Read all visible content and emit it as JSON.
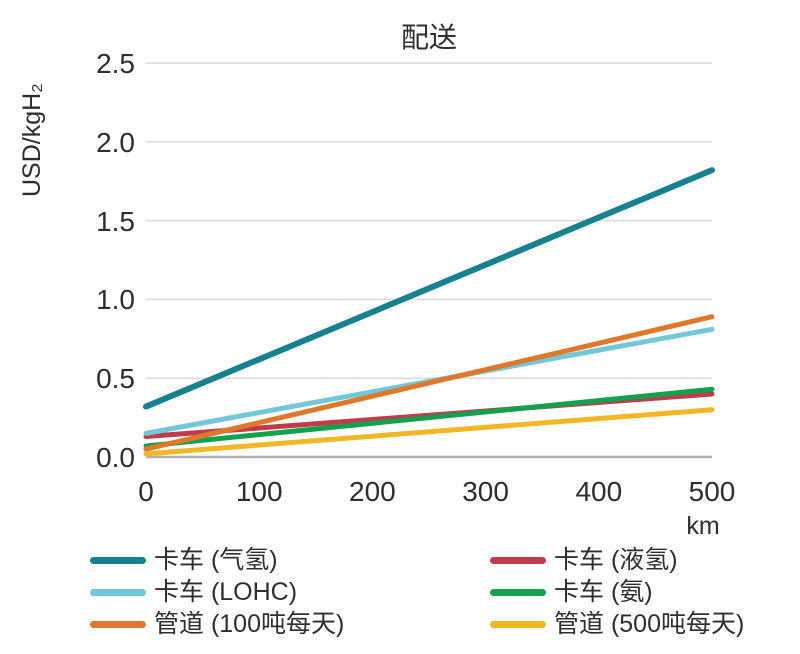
{
  "chart_data": {
    "type": "line",
    "title": "配送",
    "ylabel": "USD/kgH₂",
    "xlabel": "km",
    "x": [
      0,
      500
    ],
    "xlim": [
      0,
      500
    ],
    "ylim": [
      0,
      2.5
    ],
    "x_ticks": [
      0,
      100,
      200,
      300,
      400,
      500
    ],
    "y_ticks": [
      0,
      0.5,
      1,
      1.5,
      2,
      2.5
    ],
    "y_tick_labels": [
      "0.0",
      "0.5",
      "1.0",
      "1.5",
      "2.0",
      "2.5"
    ],
    "grid": "horizontal",
    "line_shape": "linear",
    "legend_position": "bottom-two-columns",
    "series": [
      {
        "name": "卡车 (气氢)",
        "color": "#17828F",
        "values": [
          0.32,
          1.82
        ]
      },
      {
        "name": "卡车 (LOHC)",
        "color": "#72C7D9",
        "values": [
          0.15,
          0.81
        ]
      },
      {
        "name": "管道 (100吨每天)",
        "color": "#E0782B",
        "values": [
          0.05,
          0.89
        ]
      },
      {
        "name": "卡车 (液氢)",
        "color": "#C13B4D",
        "values": [
          0.13,
          0.4
        ]
      },
      {
        "name": "卡车 (氨)",
        "color": "#12A14D",
        "values": [
          0.07,
          0.43
        ]
      },
      {
        "name": "管道 (500吨每天)",
        "color": "#F2B722",
        "values": [
          0.02,
          0.3
        ]
      }
    ],
    "colors": {
      "grid_line": "#DBDBDB",
      "baseline": "#B0B0B0",
      "text": "#2E2E2E"
    }
  }
}
